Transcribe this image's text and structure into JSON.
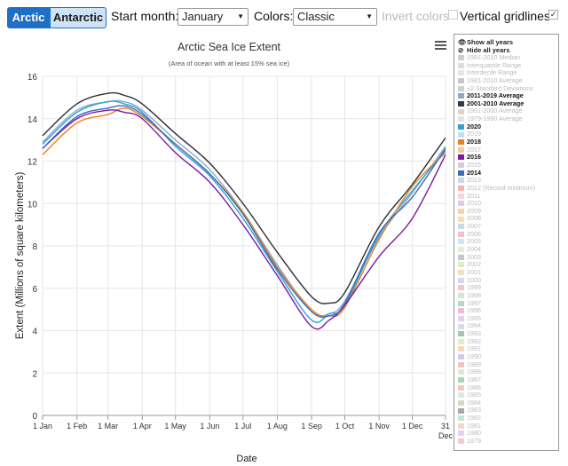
{
  "toolbar": {
    "tab_arctic": "Arctic",
    "tab_antarctic": "Antarctic",
    "start_month_label": "Start month:",
    "start_month_value": "January",
    "colors_label": "Colors:",
    "colors_value": "Classic",
    "invert_label": "Invert colors",
    "gridlines_label": "Vertical gridlines",
    "gridlines_checked": true
  },
  "legend": {
    "show_all": "Show all years",
    "hide_all": "Hide all years",
    "items": [
      {
        "label": "1981-2010 Median",
        "color": "#cccccc",
        "on": false
      },
      {
        "label": "Interquartile Range",
        "color": "#dddddd",
        "on": false
      },
      {
        "label": "Interdecile Range",
        "color": "#e6e6e6",
        "on": false
      },
      {
        "label": "1981-2010 Average",
        "color": "#c8c8c8",
        "on": false
      },
      {
        "label": "±2 Standard Deviations",
        "color": "#d0d0d0",
        "on": false
      },
      {
        "label": "2011-2019 Average",
        "color": "#8aa8c8",
        "on": true
      },
      {
        "label": "2001-2010 Average",
        "color": "#333a44",
        "on": true
      },
      {
        "label": "1991-2000 Average",
        "color": "#e0d6c8",
        "on": false
      },
      {
        "label": "1979-1990 Average",
        "color": "#e4e4e4",
        "on": false
      },
      {
        "label": "2020",
        "color": "#2aa3dc",
        "on": true
      },
      {
        "label": "2019",
        "color": "#bde3f1",
        "on": false
      },
      {
        "label": "2018",
        "color": "#e8821e",
        "on": true
      },
      {
        "label": "2017",
        "color": "#f3c9a3",
        "on": false
      },
      {
        "label": "2016",
        "color": "#7a1aa0",
        "on": true
      },
      {
        "label": "2015",
        "color": "#d8c6e8",
        "on": false
      },
      {
        "label": "2014",
        "color": "#3d6ab6",
        "on": true
      },
      {
        "label": "2013",
        "color": "#c7d7ee",
        "on": false
      },
      {
        "label": "2012 (Record minimum)",
        "color": "#f7b3b3",
        "on": false
      },
      {
        "label": "2011",
        "color": "#f8d6d6",
        "on": false
      },
      {
        "label": "2010",
        "color": "#e0c8f0",
        "on": false
      },
      {
        "label": "2009",
        "color": "#f6d2b2",
        "on": false
      },
      {
        "label": "2008",
        "color": "#f7e0a8",
        "on": false
      },
      {
        "label": "2007",
        "color": "#c9d6ee",
        "on": false
      },
      {
        "label": "2006",
        "color": "#f4c0cc",
        "on": false
      },
      {
        "label": "2005",
        "color": "#cce8e8",
        "on": false
      },
      {
        "label": "2004",
        "color": "#e6ecd4",
        "on": false
      },
      {
        "label": "2003",
        "color": "#c2c6cf",
        "on": false
      },
      {
        "label": "2002",
        "color": "#d9eec4",
        "on": false
      },
      {
        "label": "2001",
        "color": "#f7ddc0",
        "on": false
      },
      {
        "label": "2000",
        "color": "#d2d6ee",
        "on": false
      },
      {
        "label": "1999",
        "color": "#f4c6c0",
        "on": false
      },
      {
        "label": "1998",
        "color": "#d8e6d0",
        "on": false
      },
      {
        "label": "1997",
        "color": "#b8d8c8",
        "on": false
      },
      {
        "label": "1996",
        "color": "#f2bcd0",
        "on": false
      },
      {
        "label": "1995",
        "color": "#e4d2ec",
        "on": false
      },
      {
        "label": "1994",
        "color": "#cfe0ea",
        "on": false
      },
      {
        "label": "1993",
        "color": "#a8c4b0",
        "on": false
      },
      {
        "label": "1992",
        "color": "#e8eec0",
        "on": false
      },
      {
        "label": "1991",
        "color": "#f6d8b8",
        "on": false
      },
      {
        "label": "1990",
        "color": "#d6c8ec",
        "on": false
      },
      {
        "label": "1989",
        "color": "#f2c4c4",
        "on": false
      },
      {
        "label": "1988",
        "color": "#d4ecd8",
        "on": false
      },
      {
        "label": "1987",
        "color": "#b0d0c0",
        "on": false
      },
      {
        "label": "1986",
        "color": "#f4c8b8",
        "on": false
      },
      {
        "label": "1985",
        "color": "#dde6ee",
        "on": false
      },
      {
        "label": "1984",
        "color": "#d2dcc4",
        "on": false
      },
      {
        "label": "1983",
        "color": "#a8a8a8",
        "on": false
      },
      {
        "label": "1982",
        "color": "#c8e4d8",
        "on": false
      },
      {
        "label": "1981",
        "color": "#f4d8c4",
        "on": false
      },
      {
        "label": "1980",
        "color": "#e8d0f0",
        "on": false
      },
      {
        "label": "1979",
        "color": "#f6c8d4",
        "on": false
      }
    ]
  },
  "chart_data": {
    "type": "line",
    "title": "Arctic Sea Ice Extent",
    "subtitle": "(Area of ocean with at least 15% sea ice)",
    "ylabel": "Extent (Millions of square kilometers)",
    "xlabel": "Date",
    "ylim": [
      0,
      16
    ],
    "yticks": [
      0,
      2,
      4,
      6,
      8,
      10,
      12,
      14,
      16
    ],
    "xlim": [
      1,
      365
    ],
    "xticks": [
      {
        "day": 1,
        "label": "1 Jan"
      },
      {
        "day": 32,
        "label": "1 Feb"
      },
      {
        "day": 60,
        "label": "1 Mar"
      },
      {
        "day": 91,
        "label": "1 Apr"
      },
      {
        "day": 121,
        "label": "1 May"
      },
      {
        "day": 152,
        "label": "1 Jun"
      },
      {
        "day": 182,
        "label": "1 Jul"
      },
      {
        "day": 213,
        "label": "1 Aug"
      },
      {
        "day": 244,
        "label": "1 Sep"
      },
      {
        "day": 274,
        "label": "1 Oct"
      },
      {
        "day": 305,
        "label": "1 Nov"
      },
      {
        "day": 335,
        "label": "1 Dec"
      },
      {
        "day": 365,
        "label": "31 Dec"
      }
    ],
    "vertical_gridlines": true,
    "series": [
      {
        "name": "2001-2010 Average",
        "color": "#2b2f36",
        "x": [
          1,
          32,
          60,
          75,
          91,
          121,
          152,
          182,
          213,
          244,
          260,
          274,
          305,
          335,
          365
        ],
        "y": [
          13.2,
          14.7,
          15.2,
          15.1,
          14.7,
          13.3,
          11.9,
          10.0,
          7.7,
          5.6,
          5.3,
          5.8,
          8.9,
          10.9,
          13.1
        ]
      },
      {
        "name": "2011-2019 Average",
        "color": "#8aa8c8",
        "x": [
          1,
          32,
          60,
          75,
          91,
          121,
          152,
          182,
          213,
          244,
          260,
          274,
          305,
          335,
          365
        ],
        "y": [
          12.9,
          14.4,
          14.8,
          14.8,
          14.4,
          13.0,
          11.6,
          9.6,
          7.1,
          4.9,
          4.8,
          5.4,
          8.4,
          10.5,
          12.7
        ]
      },
      {
        "name": "2020",
        "color": "#2aa3dc",
        "x": [
          1,
          32,
          60,
          75,
          91,
          121,
          152,
          182,
          213,
          244,
          260,
          274,
          305,
          335,
          365
        ],
        "y": [
          12.8,
          14.3,
          14.8,
          14.7,
          14.3,
          12.7,
          11.3,
          9.3,
          6.8,
          4.5,
          4.8,
          5.2,
          8.5,
          10.6,
          12.5
        ]
      },
      {
        "name": "2018",
        "color": "#e8821e",
        "x": [
          1,
          32,
          60,
          75,
          91,
          121,
          152,
          182,
          213,
          244,
          260,
          274,
          305,
          335,
          365
        ],
        "y": [
          12.3,
          13.8,
          14.2,
          14.5,
          14.1,
          12.8,
          11.4,
          9.6,
          7.0,
          5.0,
          4.7,
          5.1,
          8.3,
          10.8,
          12.4
        ]
      },
      {
        "name": "2016",
        "color": "#7a1aa0",
        "x": [
          1,
          32,
          60,
          75,
          91,
          121,
          152,
          182,
          213,
          244,
          260,
          274,
          305,
          335,
          365
        ],
        "y": [
          12.6,
          14.0,
          14.4,
          14.3,
          14.0,
          12.4,
          11.0,
          9.0,
          6.6,
          4.2,
          4.5,
          5.2,
          7.5,
          9.3,
          12.3
        ]
      },
      {
        "name": "2014",
        "color": "#3d6ab6",
        "x": [
          1,
          32,
          60,
          75,
          91,
          121,
          152,
          182,
          213,
          244,
          260,
          274,
          305,
          335,
          365
        ],
        "y": [
          12.6,
          14.1,
          14.5,
          14.6,
          14.2,
          12.8,
          11.4,
          9.5,
          6.9,
          4.9,
          4.7,
          5.3,
          8.6,
          10.3,
          12.6
        ]
      }
    ]
  }
}
